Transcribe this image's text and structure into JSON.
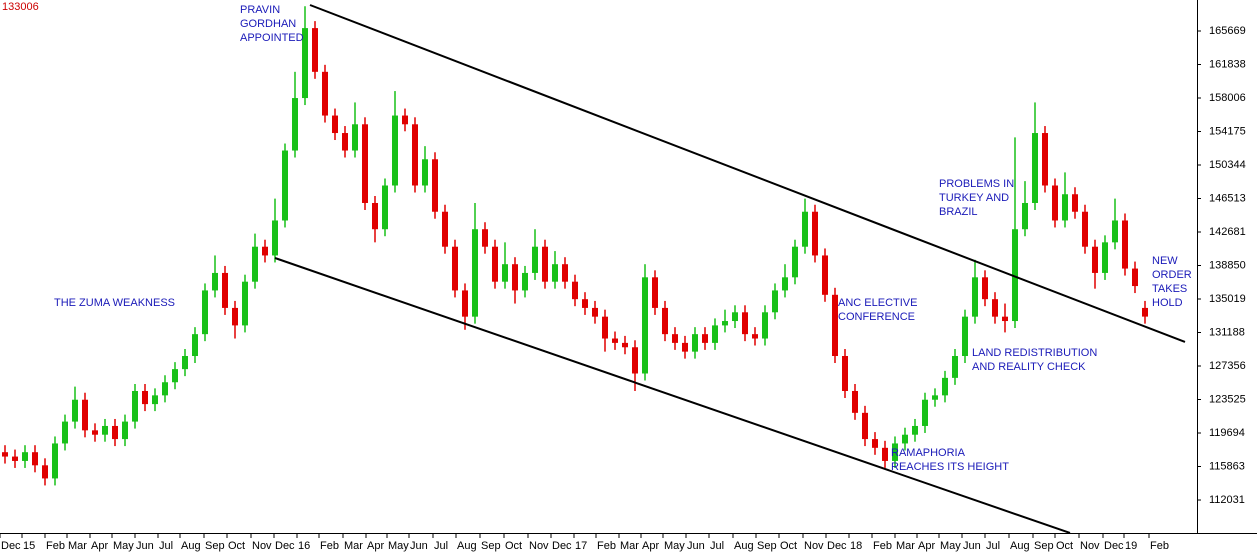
{
  "chart_data": {
    "type": "candlestick",
    "up_color": "#18c018",
    "down_color": "#e00000",
    "annotation_color": "#1a1ab8",
    "trend_color": "#000000",
    "ylim": [
      108259,
      169214
    ],
    "yticks": [
      112031,
      115863,
      119694,
      123525,
      127356,
      131188,
      135019,
      138850,
      142681,
      146513,
      150344,
      154175,
      158006,
      161838,
      165669
    ],
    "xlim": [
      -0.5,
      119.2
    ],
    "xticks": [
      {
        "value": -0.5,
        "label": "Dec"
      },
      {
        "value": 1.7,
        "label": "15"
      },
      {
        "value": 4,
        "label": "Feb"
      },
      {
        "value": 6.2,
        "label": "Mar"
      },
      {
        "value": 8.5,
        "label": "Apr"
      },
      {
        "value": 10.7,
        "label": "May"
      },
      {
        "value": 13,
        "label": "Jun"
      },
      {
        "value": 15.3,
        "label": "Jul"
      },
      {
        "value": 17.5,
        "label": "Aug"
      },
      {
        "value": 19.9,
        "label": "Sep"
      },
      {
        "value": 22.2,
        "label": "Oct"
      },
      {
        "value": 24.6,
        "label": "Nov"
      },
      {
        "value": 26.9,
        "label": "Dec"
      },
      {
        "value": 29.2,
        "label": "16"
      },
      {
        "value": 31.4,
        "label": "Feb"
      },
      {
        "value": 33.8,
        "label": "Mar"
      },
      {
        "value": 36.1,
        "label": "Apr"
      },
      {
        "value": 38.2,
        "label": "May"
      },
      {
        "value": 40.4,
        "label": "Jun"
      },
      {
        "value": 42.8,
        "label": "Jul"
      },
      {
        "value": 45.1,
        "label": "Aug"
      },
      {
        "value": 47.5,
        "label": "Sep"
      },
      {
        "value": 49.9,
        "label": "Oct"
      },
      {
        "value": 52.3,
        "label": "Nov"
      },
      {
        "value": 54.6,
        "label": "Dec"
      },
      {
        "value": 56.9,
        "label": "17"
      },
      {
        "value": 59.1,
        "label": "Feb"
      },
      {
        "value": 61.4,
        "label": "Mar"
      },
      {
        "value": 63.6,
        "label": "Apr"
      },
      {
        "value": 65.8,
        "label": "May"
      },
      {
        "value": 68.1,
        "label": "Jun"
      },
      {
        "value": 70.4,
        "label": "Jul"
      },
      {
        "value": 72.8,
        "label": "Aug"
      },
      {
        "value": 75.1,
        "label": "Sep"
      },
      {
        "value": 77.4,
        "label": "Oct"
      },
      {
        "value": 79.8,
        "label": "Nov"
      },
      {
        "value": 82.1,
        "label": "Dec"
      },
      {
        "value": 84.4,
        "label": "18"
      },
      {
        "value": 86.7,
        "label": "Feb"
      },
      {
        "value": 89,
        "label": "Mar"
      },
      {
        "value": 91.2,
        "label": "Apr"
      },
      {
        "value": 93.4,
        "label": "May"
      },
      {
        "value": 95.7,
        "label": "Jun"
      },
      {
        "value": 98,
        "label": "Jul"
      },
      {
        "value": 100.4,
        "label": "Aug"
      },
      {
        "value": 102.8,
        "label": "Sep"
      },
      {
        "value": 105,
        "label": "Oct"
      },
      {
        "value": 107.4,
        "label": "Nov"
      },
      {
        "value": 109.8,
        "label": "Dec"
      },
      {
        "value": 111.9,
        "label": "19"
      },
      {
        "value": 114.4,
        "label": "Feb"
      }
    ],
    "open": [
      117500,
      117000,
      116500,
      117500,
      116000,
      114500,
      118500,
      121000,
      123500,
      120000,
      119500,
      120500,
      119000,
      121000,
      124500,
      123000,
      124000,
      125500,
      127000,
      128500,
      131000,
      136000,
      138000,
      134000,
      132000,
      137000,
      141000,
      140000,
      144000,
      152000,
      158000,
      166000,
      161000,
      156000,
      154000,
      152000,
      155000,
      146000,
      143000,
      148000,
      156000,
      155000,
      148000,
      151000,
      145000,
      141000,
      136000,
      133000,
      143000,
      141000,
      137000,
      139000,
      136000,
      138000,
      141000,
      137000,
      139000,
      137000,
      135000,
      134000,
      133000,
      130500,
      130000,
      129500,
      126500,
      137500,
      134000,
      131000,
      130000,
      129000,
      131000,
      130000,
      132000,
      132500,
      133500,
      131000,
      130500,
      133500,
      136000,
      137500,
      141000,
      145000,
      140000,
      135500,
      128500,
      124500,
      122000,
      119000,
      118000,
      116500,
      118500,
      119500,
      120500,
      123500,
      124000,
      126000,
      128500,
      133000,
      137500,
      135000,
      133000,
      132500,
      143000,
      146000,
      154000,
      148000,
      144000,
      147000,
      145000,
      141000,
      138000,
      141500,
      144000,
      138500,
      134000
    ],
    "high": [
      118300,
      117800,
      118300,
      118300,
      116800,
      119300,
      121800,
      125000,
      124300,
      120800,
      121300,
      121300,
      121800,
      125300,
      125300,
      124800,
      126300,
      127800,
      129300,
      131800,
      136800,
      140000,
      138800,
      134800,
      137800,
      142500,
      141800,
      146500,
      152800,
      161000,
      168500,
      166800,
      161800,
      156800,
      154800,
      157500,
      155800,
      146800,
      148800,
      158800,
      156800,
      155800,
      152500,
      151800,
      145800,
      141800,
      136800,
      146000,
      143800,
      141800,
      141500,
      139800,
      138800,
      143000,
      141800,
      140500,
      139800,
      137800,
      135800,
      134800,
      133800,
      131300,
      130800,
      130300,
      139000,
      138300,
      134800,
      131800,
      130800,
      131800,
      131800,
      132800,
      133800,
      134300,
      134300,
      131800,
      134300,
      136800,
      139000,
      141800,
      146500,
      145800,
      140800,
      136300,
      129300,
      125300,
      122800,
      119800,
      118800,
      119300,
      120300,
      121300,
      124300,
      124800,
      126800,
      129300,
      133800,
      139500,
      138300,
      135800,
      134500,
      153500,
      148500,
      157500,
      154800,
      148800,
      149500,
      147800,
      145800,
      141800,
      142300,
      146500,
      144800,
      139300,
      134800
    ],
    "low": [
      116200,
      115700,
      115700,
      115200,
      113700,
      113700,
      117700,
      120200,
      119200,
      118700,
      118700,
      118200,
      118200,
      120200,
      122200,
      122200,
      123200,
      124700,
      126200,
      127700,
      130200,
      135200,
      133200,
      130500,
      131200,
      136200,
      139200,
      139200,
      143200,
      151200,
      157200,
      160200,
      155200,
      153200,
      151200,
      151200,
      145200,
      141500,
      142200,
      147200,
      154200,
      147200,
      147200,
      144200,
      140200,
      135200,
      131500,
      132200,
      140200,
      136200,
      136200,
      134500,
      135200,
      137200,
      136200,
      136200,
      136200,
      134200,
      133200,
      132200,
      129000,
      129200,
      128700,
      124500,
      125700,
      133200,
      130200,
      129200,
      128200,
      128200,
      129200,
      129200,
      131200,
      131700,
      130200,
      129700,
      129700,
      132700,
      135200,
      136700,
      140200,
      139200,
      134700,
      127700,
      123700,
      121200,
      118200,
      117200,
      115700,
      115700,
      117700,
      118700,
      119700,
      122700,
      123200,
      125200,
      127700,
      132200,
      134200,
      132200,
      131200,
      131700,
      142200,
      145200,
      147200,
      143200,
      143200,
      144200,
      140200,
      136200,
      137200,
      140700,
      137700,
      135700,
      132200
    ],
    "close": [
      117000,
      116500,
      117500,
      116000,
      114500,
      118500,
      121000,
      123500,
      120000,
      119500,
      120500,
      119000,
      121000,
      124500,
      123000,
      124000,
      125500,
      127000,
      128500,
      131000,
      136000,
      138000,
      134000,
      132000,
      137000,
      141000,
      140000,
      144000,
      152000,
      158000,
      166000,
      161000,
      156000,
      154000,
      152000,
      155000,
      146000,
      143000,
      148000,
      156000,
      155000,
      148000,
      151000,
      145000,
      141000,
      136000,
      133000,
      143000,
      141000,
      137000,
      139000,
      136000,
      138000,
      141000,
      137000,
      139000,
      137000,
      135000,
      134000,
      133000,
      130500,
      130000,
      129500,
      126500,
      137500,
      134000,
      131000,
      130000,
      129000,
      131000,
      130000,
      132000,
      132500,
      133500,
      131000,
      130500,
      133500,
      136000,
      137500,
      141000,
      145000,
      140000,
      135500,
      128500,
      124500,
      122000,
      119000,
      118000,
      116500,
      118500,
      119500,
      120500,
      123500,
      124000,
      126000,
      128500,
      133000,
      137500,
      135000,
      133000,
      132500,
      143000,
      146000,
      154000,
      148000,
      144000,
      147000,
      145000,
      141000,
      138000,
      141500,
      144000,
      138500,
      136500,
      133006
    ],
    "trend_lines": [
      {
        "x": [
          30.5,
          118
        ],
        "y": [
          168642,
          130103
        ]
      },
      {
        "x": [
          27,
          106.5
        ],
        "y": [
          139709,
          108261
        ]
      }
    ],
    "annotations": [
      {
        "lines": [
          "PRAVIN",
          "GORDHAN",
          "APPOINTED"
        ]
      },
      {
        "lines": [
          "THE ZUMA WEAKNESS"
        ]
      },
      {
        "lines": [
          "ANC ELECTIVE",
          "CONFERENCE"
        ]
      },
      {
        "lines": [
          "PROBLEMS IN",
          "TURKEY AND",
          "BRAZIL"
        ]
      },
      {
        "lines": [
          "LAND REDISTRIBUTION",
          "AND REALITY CHECK"
        ]
      },
      {
        "lines": [
          "RAMAPHORIA",
          "REACHES ITS HEIGHT"
        ]
      },
      {
        "lines": [
          "NEW",
          "ORDER",
          "TAKES",
          "HOLD"
        ]
      }
    ]
  }
}
